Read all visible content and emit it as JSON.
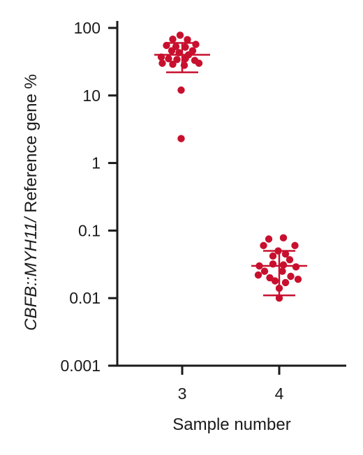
{
  "chart_data": {
    "type": "scatter",
    "xlabel": "Sample number",
    "ylabel_italic": "CBFB::MYH11/",
    "ylabel_rest": " Reference gene %",
    "yscale": "log",
    "ylim": [
      0.001,
      100
    ],
    "y_ticks": [
      {
        "value": 100,
        "label": "100"
      },
      {
        "value": 10,
        "label": "10"
      },
      {
        "value": 1,
        "label": "1"
      },
      {
        "value": 0.1,
        "label": "0.1"
      },
      {
        "value": 0.01,
        "label": "0.01"
      },
      {
        "value": 0.001,
        "label": "0.001"
      }
    ],
    "categories": [
      "3",
      "4"
    ],
    "color": "#c8102e",
    "groups": [
      {
        "category": "3",
        "mean": 40,
        "error_low": 22,
        "error_high": 60,
        "points": [
          {
            "offset": -0.02,
            "y": 78
          },
          {
            "offset": -0.09,
            "y": 68
          },
          {
            "offset": 0.05,
            "y": 67
          },
          {
            "offset": 0.13,
            "y": 57
          },
          {
            "offset": -0.15,
            "y": 55
          },
          {
            "offset": -0.06,
            "y": 53
          },
          {
            "offset": 0.03,
            "y": 52
          },
          {
            "offset": -0.1,
            "y": 46
          },
          {
            "offset": 0.1,
            "y": 46
          },
          {
            "offset": -0.03,
            "y": 43
          },
          {
            "offset": 0.06,
            "y": 40
          },
          {
            "offset": -0.2,
            "y": 37
          },
          {
            "offset": -0.13,
            "y": 35
          },
          {
            "offset": -0.05,
            "y": 34
          },
          {
            "offset": 0.03,
            "y": 35
          },
          {
            "offset": 0.12,
            "y": 33
          },
          {
            "offset": -0.19,
            "y": 30
          },
          {
            "offset": -0.09,
            "y": 29
          },
          {
            "offset": 0.16,
            "y": 30
          },
          {
            "offset": 0.02,
            "y": 28
          },
          {
            "offset": -0.01,
            "y": 12
          },
          {
            "offset": -0.01,
            "y": 2.3
          }
        ]
      },
      {
        "category": "4",
        "mean": 0.03,
        "error_low": 0.011,
        "error_high": 0.05,
        "points": [
          {
            "offset": -0.1,
            "y": 0.075
          },
          {
            "offset": 0.04,
            "y": 0.078
          },
          {
            "offset": 0.15,
            "y": 0.06
          },
          {
            "offset": -0.15,
            "y": 0.06
          },
          {
            "offset": -0.01,
            "y": 0.05
          },
          {
            "offset": 0.06,
            "y": 0.045
          },
          {
            "offset": -0.06,
            "y": 0.042
          },
          {
            "offset": 0.1,
            "y": 0.037
          },
          {
            "offset": -0.19,
            "y": 0.03
          },
          {
            "offset": -0.06,
            "y": 0.032
          },
          {
            "offset": 0.04,
            "y": 0.031
          },
          {
            "offset": 0.16,
            "y": 0.029
          },
          {
            "offset": -0.14,
            "y": 0.025
          },
          {
            "offset": 0.03,
            "y": 0.025
          },
          {
            "offset": -0.2,
            "y": 0.022
          },
          {
            "offset": 0.11,
            "y": 0.021
          },
          {
            "offset": -0.09,
            "y": 0.02
          },
          {
            "offset": 0.18,
            "y": 0.019
          },
          {
            "offset": -0.04,
            "y": 0.018
          },
          {
            "offset": 0.06,
            "y": 0.017
          },
          {
            "offset": 0.0,
            "y": 0.014
          },
          {
            "offset": 0.0,
            "y": 0.01
          }
        ]
      }
    ]
  }
}
